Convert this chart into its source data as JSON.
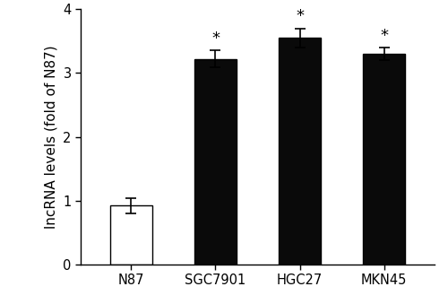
{
  "categories": [
    "N87",
    "SGC7901",
    "HGC27",
    "MKN45"
  ],
  "values": [
    0.92,
    3.22,
    3.55,
    3.3
  ],
  "errors": [
    0.12,
    0.13,
    0.15,
    0.1
  ],
  "bar_colors": [
    "#ffffff",
    "#0a0a0a",
    "#0a0a0a",
    "#0a0a0a"
  ],
  "bar_edgecolors": [
    "#000000",
    "#000000",
    "#000000",
    "#000000"
  ],
  "asterisks": [
    false,
    true,
    true,
    true
  ],
  "ylabel": "lncRNA levels (fold of N87)",
  "ylim": [
    0,
    4
  ],
  "yticks": [
    0,
    1,
    2,
    3,
    4
  ],
  "bar_width": 0.5,
  "background_color": "#ffffff",
  "asterisk_fontsize": 13,
  "label_fontsize": 11,
  "tick_fontsize": 10.5
}
